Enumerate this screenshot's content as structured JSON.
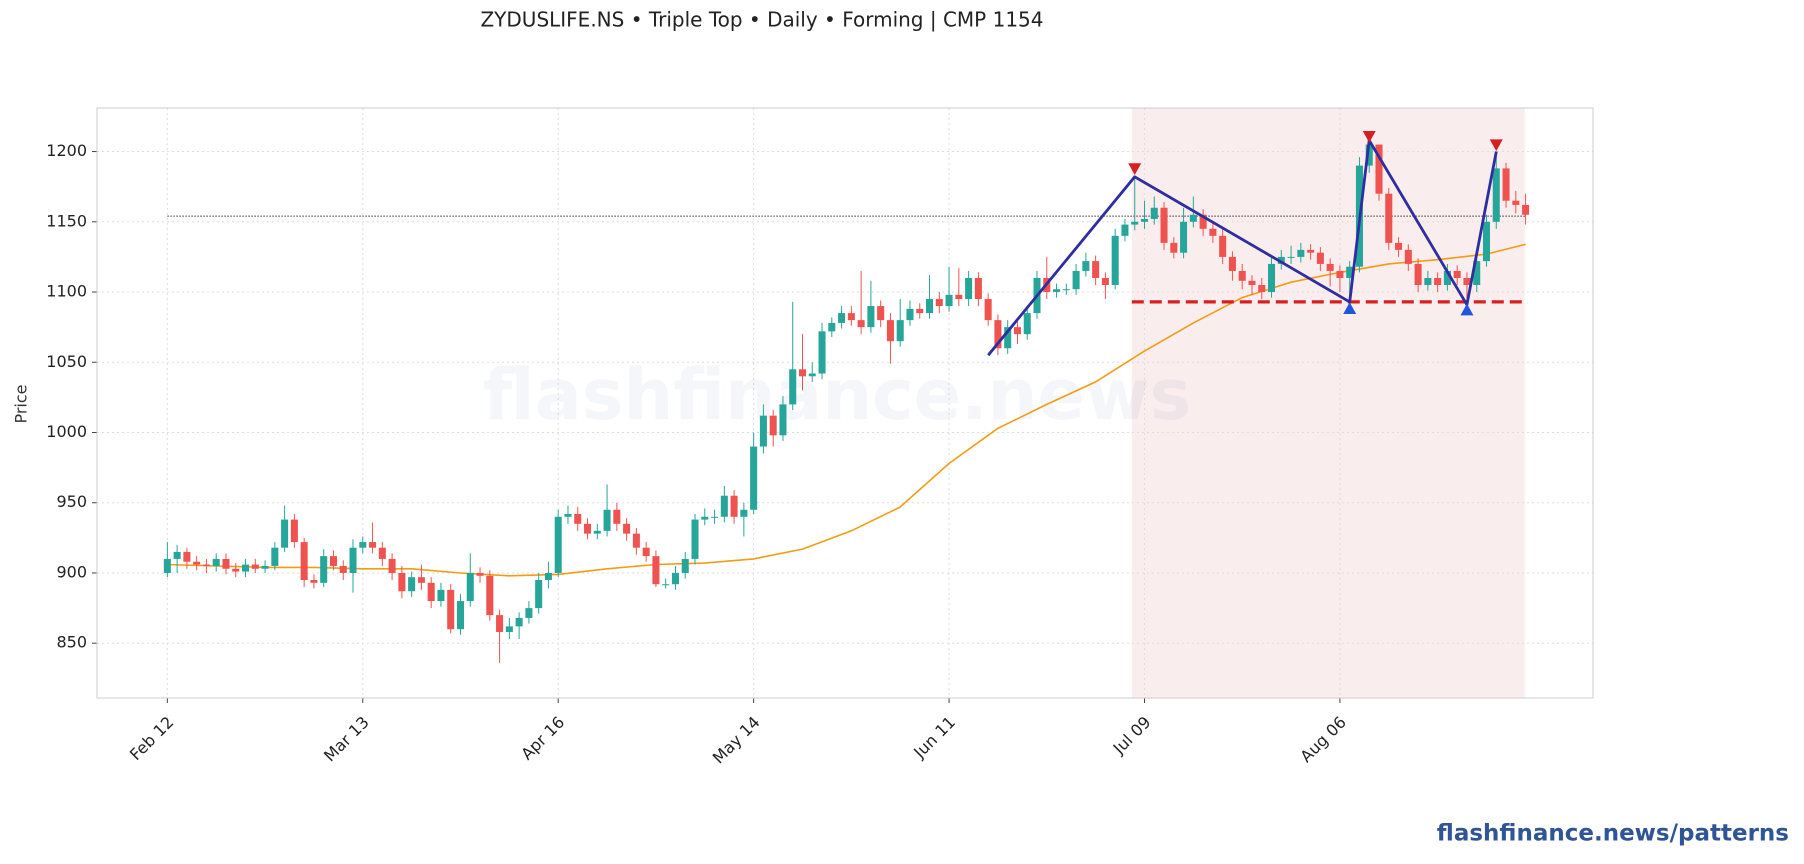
{
  "chart_data": {
    "type": "candlestick",
    "title": "ZYDUSLIFE.NS  •  Triple Top  •  Daily  •  Forming  |  CMP 1154",
    "y_label": "Price",
    "watermark": "flashfinance.news",
    "up_color": "#26a69a",
    "down_color": "#ef5350",
    "open": [
      900,
      910,
      915,
      908,
      906,
      905,
      910,
      903,
      901,
      906,
      903,
      905,
      918,
      938,
      922,
      895,
      893,
      912,
      905,
      900,
      918,
      922,
      918,
      910,
      900,
      887,
      897,
      893,
      880,
      888,
      860,
      880,
      900,
      898,
      870,
      858,
      862,
      868,
      875,
      895,
      900,
      940,
      942,
      935,
      928,
      930,
      945,
      935,
      928,
      918,
      912,
      892,
      892,
      900,
      910,
      938,
      940,
      940,
      955,
      940,
      945,
      990,
      1012,
      998,
      1020,
      1045,
      1040,
      1042,
      1072,
      1078,
      1085,
      1080,
      1075,
      1090,
      1080,
      1065,
      1080,
      1088,
      1085,
      1095,
      1090,
      1098,
      1095,
      1110,
      1095,
      1080,
      1060,
      1075,
      1070,
      1085,
      1110,
      1100,
      1102,
      1102,
      1115,
      1122,
      1110,
      1105,
      1140,
      1148,
      1150,
      1152,
      1160,
      1135,
      1128,
      1150,
      1155,
      1145,
      1140,
      1125,
      1115,
      1108,
      1105,
      1100,
      1120,
      1125,
      1125,
      1130,
      1128,
      1120,
      1115,
      1110,
      1118,
      1190,
      1205,
      1170,
      1135,
      1130,
      1120,
      1105,
      1110,
      1105,
      1115,
      1110,
      1105,
      1122,
      1150,
      1188,
      1165,
      1162
    ],
    "high": [
      922,
      920,
      918,
      912,
      910,
      914,
      914,
      907,
      910,
      910,
      909,
      922,
      948,
      942,
      925,
      899,
      917,
      916,
      909,
      924,
      926,
      936,
      922,
      914,
      905,
      901,
      906,
      897,
      893,
      892,
      885,
      914,
      904,
      902,
      874,
      868,
      872,
      880,
      900,
      908,
      945,
      948,
      947,
      939,
      935,
      963,
      950,
      939,
      932,
      922,
      916,
      896,
      905,
      915,
      942,
      946,
      945,
      962,
      959,
      950,
      1000,
      1020,
      1016,
      1026,
      1093,
      1070,
      1050,
      1078,
      1082,
      1090,
      1090,
      1115,
      1108,
      1094,
      1085,
      1095,
      1094,
      1092,
      1112,
      1100,
      1118,
      1117,
      1115,
      1114,
      1099,
      1084,
      1080,
      1079,
      1090,
      1115,
      1125,
      1106,
      1106,
      1120,
      1128,
      1126,
      1114,
      1145,
      1152,
      1182,
      1165,
      1168,
      1164,
      1139,
      1160,
      1168,
      1159,
      1149,
      1145,
      1129,
      1120,
      1112,
      1110,
      1125,
      1130,
      1133,
      1135,
      1134,
      1132,
      1124,
      1119,
      1122,
      1196,
      1208,
      1204,
      1174,
      1139,
      1134,
      1124,
      1115,
      1114,
      1120,
      1119,
      1114,
      1127,
      1155,
      1200,
      1192,
      1172,
      1170
    ],
    "low": [
      897,
      900,
      903,
      902,
      900,
      901,
      899,
      897,
      897,
      900,
      900,
      902,
      915,
      918,
      890,
      889,
      890,
      902,
      895,
      886,
      914,
      914,
      905,
      895,
      882,
      883,
      888,
      875,
      876,
      857,
      856,
      876,
      893,
      866,
      836,
      853,
      853,
      864,
      871,
      889,
      897,
      935,
      930,
      924,
      924,
      926,
      930,
      923,
      913,
      908,
      890,
      889,
      888,
      896,
      906,
      934,
      935,
      936,
      935,
      926,
      942,
      985,
      990,
      994,
      1016,
      1030,
      1036,
      1038,
      1068,
      1074,
      1076,
      1070,
      1071,
      1075,
      1049,
      1061,
      1076,
      1081,
      1081,
      1085,
      1086,
      1090,
      1090,
      1090,
      1076,
      1055,
      1056,
      1063,
      1066,
      1081,
      1095,
      1096,
      1098,
      1098,
      1111,
      1105,
      1095,
      1102,
      1136,
      1144,
      1145,
      1148,
      1130,
      1124,
      1124,
      1146,
      1140,
      1135,
      1120,
      1108,
      1102,
      1098,
      1095,
      1096,
      1116,
      1120,
      1121,
      1123,
      1115,
      1104,
      1100,
      1093,
      1114,
      1185,
      1165,
      1130,
      1125,
      1115,
      1100,
      1101,
      1100,
      1101,
      1105,
      1091,
      1100,
      1118,
      1145,
      1160,
      1156,
      1148
    ],
    "close": [
      910,
      915,
      908,
      906,
      905,
      910,
      903,
      901,
      906,
      903,
      905,
      918,
      938,
      922,
      895,
      893,
      912,
      905,
      900,
      918,
      922,
      918,
      910,
      900,
      887,
      897,
      893,
      880,
      888,
      860,
      880,
      900,
      898,
      870,
      858,
      862,
      868,
      875,
      895,
      900,
      940,
      942,
      935,
      928,
      930,
      945,
      935,
      928,
      918,
      912,
      892,
      892,
      900,
      910,
      938,
      940,
      940,
      955,
      940,
      945,
      990,
      1012,
      998,
      1020,
      1045,
      1040,
      1042,
      1072,
      1078,
      1085,
      1080,
      1075,
      1090,
      1080,
      1065,
      1080,
      1088,
      1085,
      1095,
      1090,
      1098,
      1095,
      1110,
      1095,
      1080,
      1060,
      1075,
      1070,
      1085,
      1110,
      1100,
      1102,
      1102,
      1115,
      1122,
      1110,
      1105,
      1140,
      1148,
      1150,
      1152,
      1160,
      1135,
      1128,
      1150,
      1155,
      1145,
      1140,
      1125,
      1115,
      1108,
      1105,
      1100,
      1120,
      1125,
      1125,
      1130,
      1128,
      1120,
      1115,
      1110,
      1118,
      1190,
      1205,
      1170,
      1135,
      1130,
      1120,
      1105,
      1110,
      1105,
      1115,
      1110,
      1105,
      1122,
      1150,
      1188,
      1165,
      1162,
      1155
    ],
    "moving_average": {
      "color": "#f39c12",
      "x": [
        0,
        5,
        10,
        15,
        20,
        25,
        30,
        35,
        40,
        45,
        50,
        55,
        60,
        65,
        70,
        75,
        80,
        85,
        90,
        95,
        100,
        105,
        110,
        115,
        120,
        125,
        130,
        135,
        139
      ],
      "values": [
        906,
        905,
        904,
        904,
        903,
        903,
        900,
        898,
        899,
        903,
        906,
        907,
        910,
        917,
        930,
        947,
        978,
        1003,
        1020,
        1036,
        1058,
        1078,
        1096,
        1107,
        1114,
        1120,
        1123,
        1127,
        1134
      ]
    },
    "cmp_line": {
      "value": 1154,
      "x": [
        0,
        139
      ],
      "color": "#333333"
    },
    "zone": {
      "x": [
        98.7,
        138.9
      ],
      "color": "#f6dede"
    },
    "neckline": {
      "value": 1093,
      "x": [
        98.7,
        138.9
      ],
      "color": "#d62020"
    },
    "pattern": {
      "color": "#2e2ea0",
      "x": [
        84,
        99,
        121,
        123,
        133,
        136
      ],
      "values": [
        1055,
        1182,
        1093,
        1208,
        1091,
        1200
      ]
    },
    "peak_markers": {
      "color": "#d62020",
      "x": [
        99,
        123,
        136
      ],
      "values": [
        1187,
        1210,
        1204
      ]
    },
    "trough_markers": {
      "color": "#2255dd",
      "x": [
        121,
        133
      ],
      "values": [
        1089,
        1088
      ]
    },
    "xlim": [
      -7.2,
      145.9
    ],
    "ylim": [
      811,
      1231
    ],
    "xticks": [
      {
        "value": 0,
        "label": "Feb 12"
      },
      {
        "value": 20,
        "label": "Mar 13"
      },
      {
        "value": 40,
        "label": "Apr 16"
      },
      {
        "value": 60,
        "label": "May 14"
      },
      {
        "value": 80,
        "label": "Jun 11"
      },
      {
        "value": 100,
        "label": "Jul 09"
      },
      {
        "value": 120,
        "label": "Aug 06"
      }
    ],
    "yticks": [
      850,
      900,
      950,
      1000,
      1050,
      1100,
      1150,
      1200
    ],
    "grid": true
  },
  "footer": "flashfinance.news/patterns"
}
